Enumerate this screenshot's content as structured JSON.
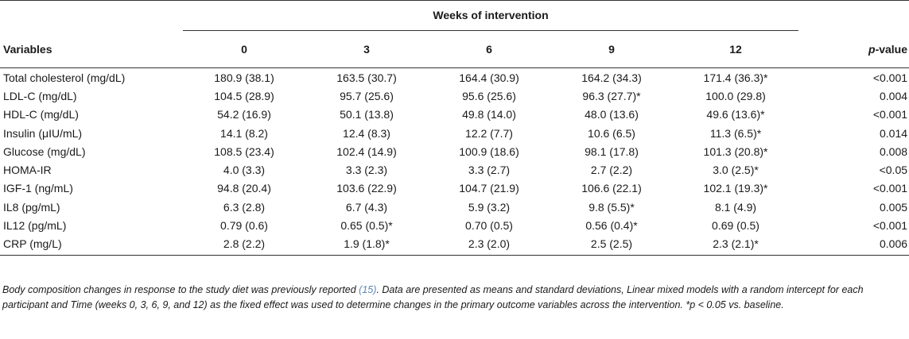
{
  "table": {
    "group_header": "Weeks of intervention",
    "columns": [
      "Variables",
      "0",
      "3",
      "6",
      "9",
      "12",
      "value"
    ],
    "pvalue_prefix": "p",
    "pvalue_suffix": "-value",
    "rows": [
      {
        "variable": "Total cholesterol (mg/dL)",
        "w0": "180.9 (38.1)",
        "w3": "163.5 (30.7)",
        "w6": "164.4 (30.9)",
        "w9": "164.2 (34.3)",
        "w12": "171.4 (36.3)*",
        "p": "<0.001"
      },
      {
        "variable": "LDL-C (mg/dL)",
        "w0": "104.5 (28.9)",
        "w3": "95.7 (25.6)",
        "w6": "95.6 (25.6)",
        "w9": "96.3 (27.7)*",
        "w12": "100.0 (29.8)",
        "p": "0.004"
      },
      {
        "variable": "HDL-C (mg/dL)",
        "w0": "54.2 (16.9)",
        "w3": "50.1 (13.8)",
        "w6": "49.8 (14.0)",
        "w9": "48.0 (13.6)",
        "w12": "49.6 (13.6)*",
        "p": "<0.001"
      },
      {
        "variable": "Insulin (μIU/mL)",
        "w0": "14.1 (8.2)",
        "w3": "12.4 (8.3)",
        "w6": "12.2 (7.7)",
        "w9": "10.6 (6.5)",
        "w12": "11.3 (6.5)*",
        "p": "0.014"
      },
      {
        "variable": "Glucose (mg/dL)",
        "w0": "108.5 (23.4)",
        "w3": "102.4 (14.9)",
        "w6": "100.9 (18.6)",
        "w9": "98.1 (17.8)",
        "w12": "101.3 (20.8)*",
        "p": "0.008"
      },
      {
        "variable": "HOMA-IR",
        "w0": "4.0 (3.3)",
        "w3": "3.3 (2.3)",
        "w6": "3.3 (2.7)",
        "w9": "2.7 (2.2)",
        "w12": "3.0 (2.5)*",
        "p": "<0.05"
      },
      {
        "variable": "IGF-1 (ng/mL)",
        "w0": "94.8 (20.4)",
        "w3": "103.6 (22.9)",
        "w6": "104.7 (21.9)",
        "w9": "106.6 (22.1)",
        "w12": "102.1 (19.3)*",
        "p": "<0.001"
      },
      {
        "variable": "IL8 (pg/mL)",
        "w0": "6.3 (2.8)",
        "w3": "6.7 (4.3)",
        "w6": "5.9 (3.2)",
        "w9": "9.8 (5.5)*",
        "w12": "8.1 (4.9)",
        "p": "0.005"
      },
      {
        "variable": "IL12 (pg/mL)",
        "w0": "0.79 (0.6)",
        "w3": "0.65 (0.5)*",
        "w6": "0.70 (0.5)",
        "w9": "0.56 (0.4)*",
        "w12": "0.69 (0.5)",
        "p": "<0.001"
      },
      {
        "variable": "CRP (mg/L)",
        "w0": "2.8 (2.2)",
        "w3": "1.9 (1.8)*",
        "w6": "2.3 (2.0)",
        "w9": "2.5 (2.5)",
        "w12": "2.3 (2.1)*",
        "p": "0.006"
      }
    ]
  },
  "footnote": {
    "text_before_ref": "Body composition changes in response to the study diet was previously reported ",
    "ref": "(15)",
    "text_after_ref": ". Data are presented as means and standard deviations, Linear mixed models with a random intercept for each participant and Time (weeks 0, 3, 6, 9, and 12) as the fixed effect was used to determine changes in the primary outcome variables across the intervention. *p < 0.05 vs. baseline."
  },
  "colors": {
    "text": "#1a1a1a",
    "rule": "#333333",
    "link": "#5b86b5"
  }
}
